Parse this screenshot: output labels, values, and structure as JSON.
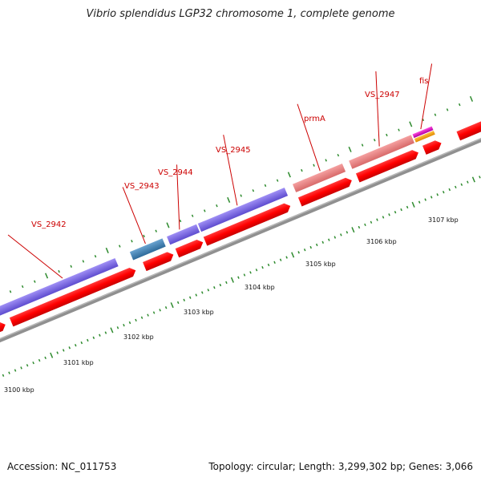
{
  "title": "Vibrio splendidus LGP32 chromosome 1, complete genome",
  "footer": {
    "accession": "Accession: NC_011753",
    "stats": "Topology: circular; Length: 3,299,302 bp; Genes: 3,066"
  },
  "colors": {
    "backbone": "#888888",
    "cds_forward": "#e41a1c",
    "label": "#cc0000",
    "tick_minor": "#2e8b2e",
    "blast_purple": "#7b68ee",
    "blast_steel": "#4682b4",
    "blast_pink": "#f08080",
    "blast_magenta": "#e020c0",
    "blast_orange": "#ffa500"
  },
  "scale": {
    "unit": "kbp",
    "labels": [
      "3100 kbp",
      "3101 kbp",
      "3102 kbp",
      "3103 kbp",
      "3104 kbp",
      "3105 kbp",
      "3106 kbp",
      "3107 kbp"
    ]
  },
  "genes": [
    {
      "name": "VS_2942"
    },
    {
      "name": "VS_2943"
    },
    {
      "name": "VS_2944"
    },
    {
      "name": "VS_2945"
    },
    {
      "name": "prmA"
    },
    {
      "name": "VS_2947"
    },
    {
      "name": "fis"
    }
  ]
}
